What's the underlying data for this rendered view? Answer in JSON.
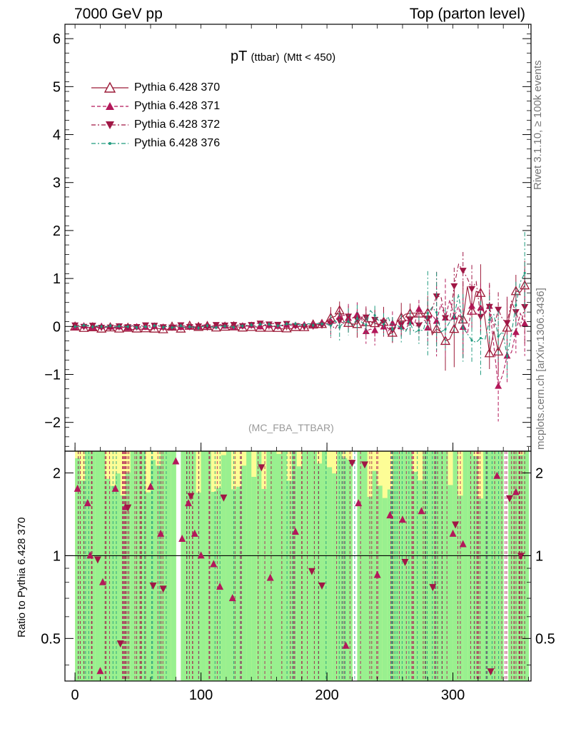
{
  "header": {
    "left": "7000 GeV pp",
    "right": "Top (parton level)"
  },
  "side_labels": {
    "rivet": "Rivet 3.1.10, ≥ 100k events",
    "mcplots": "mcplots.cern.ch [arXiv:1306.3436]"
  },
  "plot_title": {
    "main": "pT",
    "sub1": "(ttbar)",
    "sub2": "(Mtt < 450)"
  },
  "analysis_tag": "(MC_FBA_TTBAR)",
  "ratio_ylabel": "Ratio to Pythia 6.428 370",
  "legend": [
    {
      "name": "Pythia 6.428 370",
      "color": "#9c1b38",
      "marker": "triangle-open",
      "dash": "solid"
    },
    {
      "name": "Pythia 6.428 371",
      "color": "#b3185a",
      "marker": "triangle-up",
      "dash": "dashed"
    },
    {
      "name": "Pythia 6.428 372",
      "color": "#a01745",
      "marker": "triangle-down",
      "dash": "dashdot"
    },
    {
      "name": "Pythia 6.428 376",
      "color": "#1f9a7e",
      "marker": "dot",
      "dash": "dashdot"
    }
  ],
  "chart_data": {
    "type": "line",
    "main_panel": {
      "xlim": [
        -8,
        362
      ],
      "ylim": [
        -2.6,
        6.3
      ],
      "yticks": [
        -2,
        -1,
        0,
        1,
        2,
        3,
        4,
        5,
        6
      ],
      "series": [
        {
          "name": "Pythia 6.428 370",
          "x": [
            0,
            60,
            100,
            120,
            150,
            170,
            200,
            210,
            220,
            240,
            250,
            260,
            280,
            300,
            310,
            320,
            330,
            340,
            350,
            355,
            360
          ],
          "y": [
            0.0,
            -0.05,
            0.0,
            0.0,
            0.0,
            -0.05,
            0.1,
            0.2,
            0.05,
            0.15,
            -0.1,
            0.1,
            0.25,
            -0.25,
            0.45,
            0.9,
            -0.4,
            -0.55,
            1.0,
            0.3,
            1.0
          ]
        },
        {
          "name": "Pythia 6.428 371",
          "x": [
            0,
            60,
            100,
            150,
            200,
            220,
            240,
            260,
            280,
            300,
            310,
            320,
            330,
            335,
            345,
            355,
            360
          ],
          "y": [
            0.0,
            0.0,
            0.02,
            0.0,
            0.05,
            0.2,
            -0.1,
            0.1,
            0.3,
            0.4,
            -0.2,
            0.6,
            0.1,
            -1.0,
            -0.5,
            0.4,
            -0.15
          ]
        },
        {
          "name": "Pythia 6.428 372",
          "x": [
            0,
            60,
            100,
            150,
            200,
            220,
            240,
            260,
            280,
            300,
            305,
            320,
            330,
            345,
            360
          ],
          "y": [
            0.0,
            0.0,
            0.0,
            0.05,
            0.0,
            0.25,
            0.1,
            0.05,
            0.2,
            0.5,
            1.0,
            0.6,
            0.3,
            0.2,
            0.3
          ]
        },
        {
          "name": "Pythia 6.428 376",
          "x": [
            0,
            60,
            100,
            150,
            200,
            220,
            240,
            260,
            280,
            300,
            310,
            320,
            330,
            345,
            355,
            360
          ],
          "y": [
            0.0,
            0.0,
            0.0,
            0.02,
            0.05,
            0.15,
            0.2,
            -0.1,
            0.1,
            0.35,
            0.3,
            -0.5,
            0.4,
            -0.4,
            1.0,
            0.5
          ]
        }
      ]
    },
    "ratio_panel": {
      "xlim": [
        -8,
        362
      ],
      "ylim": [
        0.35,
        2.4
      ],
      "yticks": [
        0.5,
        1,
        2
      ],
      "ref_line": 1,
      "xticks": [
        0,
        100,
        200,
        300
      ],
      "markers_371": {
        "x": [
          2,
          10,
          12,
          20,
          22,
          32,
          40,
          60,
          68,
          80,
          85,
          90,
          95,
          100,
          110,
          115,
          125,
          155,
          175,
          215,
          225,
          240,
          250,
          260,
          275,
          300,
          308,
          335,
          350
        ],
        "y": [
          1.75,
          1.55,
          1.0,
          0.38,
          0.8,
          1.75,
          1.5,
          1.78,
          1.2,
          2.2,
          1.15,
          1.55,
          1.2,
          1.0,
          0.93,
          0.77,
          0.7,
          0.83,
          1.22,
          0.47,
          1.55,
          0.85,
          1.4,
          1.35,
          1.45,
          1.2,
          1.1,
          1.95,
          1.7
        ]
      },
      "markers_372": {
        "x": [
          18,
          36,
          42,
          62,
          70,
          92,
          118,
          148,
          188,
          196,
          220,
          230,
          262,
          284,
          302,
          330,
          345,
          354
        ],
        "y": [
          0.97,
          0.48,
          1.5,
          0.78,
          0.76,
          1.65,
          1.63,
          2.1,
          0.88,
          0.78,
          2.18,
          2.15,
          0.95,
          0.77,
          1.3,
          0.38,
          1.62,
          1.0
        ]
      }
    }
  }
}
